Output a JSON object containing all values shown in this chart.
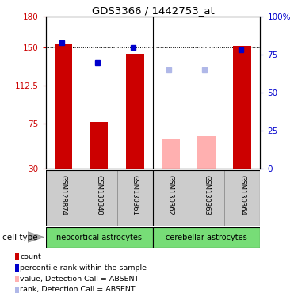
{
  "title": "GDS3366 / 1442753_at",
  "samples": [
    "GSM128874",
    "GSM130340",
    "GSM130361",
    "GSM130362",
    "GSM130363",
    "GSM130364"
  ],
  "count_values": [
    153,
    76,
    143,
    60,
    62,
    151
  ],
  "percentile_values": [
    83,
    70,
    80,
    65,
    65,
    78
  ],
  "absent_flags": [
    false,
    false,
    false,
    true,
    true,
    false
  ],
  "baseline": 30,
  "ylim_left": [
    30,
    180
  ],
  "ylim_right": [
    0,
    100
  ],
  "yticks_left": [
    30,
    75,
    112.5,
    150,
    180
  ],
  "yticks_right": [
    0,
    25,
    50,
    75,
    100
  ],
  "ytick_labels_left": [
    "30",
    "75",
    "112.5",
    "150",
    "180"
  ],
  "ytick_labels_right": [
    "0",
    "25",
    "50",
    "75",
    "100%"
  ],
  "left_color": "#cc0000",
  "right_color": "#0000cc",
  "bar_color_present": "#cc0000",
  "bar_color_absent": "#ffb0b0",
  "rank_color_present": "#0000cc",
  "rank_color_absent": "#b0b8e8",
  "bar_width": 0.5,
  "groups": [
    {
      "label": "neocortical astrocytes",
      "indices": [
        0,
        1,
        2
      ],
      "color": "#77dd77"
    },
    {
      "label": "cerebellar astrocytes",
      "indices": [
        3,
        4,
        5
      ],
      "color": "#77dd77"
    }
  ],
  "cell_type_label": "cell type",
  "legend_items": [
    {
      "color": "#cc0000",
      "label": "count"
    },
    {
      "color": "#0000cc",
      "label": "percentile rank within the sample"
    },
    {
      "color": "#ffb0b0",
      "label": "value, Detection Call = ABSENT"
    },
    {
      "color": "#b0b8e8",
      "label": "rank, Detection Call = ABSENT"
    }
  ],
  "grid_color": "black",
  "fig_bg": "white"
}
